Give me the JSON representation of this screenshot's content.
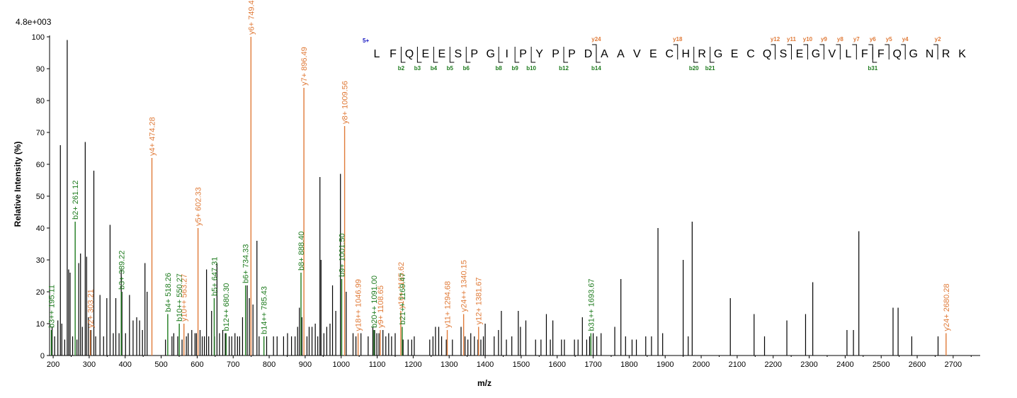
{
  "chart_data": {
    "type": "bar",
    "subtype": "mass-spectrum",
    "max_intensity_label": "4.8e+003",
    "xlabel": "m/z",
    "ylabel": "Relative   Intensity (%)",
    "xlim": [
      190,
      2775
    ],
    "ylim": [
      0,
      100
    ],
    "x_ticks": [
      200,
      300,
      400,
      500,
      600,
      700,
      800,
      900,
      1000,
      1100,
      1200,
      1300,
      1400,
      1500,
      1600,
      1700,
      1800,
      1900,
      2000,
      2100,
      2200,
      2300,
      2400,
      2500,
      2600,
      2700
    ],
    "y_ticks": [
      0,
      10,
      20,
      30,
      40,
      50,
      60,
      70,
      80,
      90,
      100
    ],
    "colors": {
      "black": "#000000",
      "y_ion": "#e07b39",
      "b_ion": "#1e7b1e",
      "charge": "#1010c0"
    },
    "peaks": [
      [
        197,
        9
      ],
      [
        204,
        6
      ],
      [
        213,
        11
      ],
      [
        220,
        66
      ],
      [
        224,
        10
      ],
      [
        232,
        5
      ],
      [
        239,
        99
      ],
      [
        243,
        27
      ],
      [
        247,
        26
      ],
      [
        254,
        6
      ],
      [
        266,
        5
      ],
      [
        271,
        29
      ],
      [
        276,
        32
      ],
      [
        281,
        9
      ],
      [
        289,
        67
      ],
      [
        293,
        31
      ],
      [
        298,
        12
      ],
      [
        305,
        8
      ],
      [
        313,
        58
      ],
      [
        318,
        6
      ],
      [
        330,
        19
      ],
      [
        340,
        6
      ],
      [
        349,
        18
      ],
      [
        358,
        41
      ],
      [
        367,
        7
      ],
      [
        374,
        18
      ],
      [
        383,
        7
      ],
      [
        389,
        27
      ],
      [
        391,
        20
      ],
      [
        401,
        7
      ],
      [
        412,
        19
      ],
      [
        422,
        11
      ],
      [
        432,
        12
      ],
      [
        440,
        11
      ],
      [
        448,
        8
      ],
      [
        455,
        29
      ],
      [
        461,
        20
      ],
      [
        512,
        5
      ],
      [
        530,
        6
      ],
      [
        535,
        7
      ],
      [
        546,
        6
      ],
      [
        558,
        5
      ],
      [
        570,
        6
      ],
      [
        575,
        7
      ],
      [
        585,
        8
      ],
      [
        594,
        7
      ],
      [
        598,
        7
      ],
      [
        608,
        8
      ],
      [
        614,
        6
      ],
      [
        620,
        6
      ],
      [
        626,
        27
      ],
      [
        632,
        6
      ],
      [
        640,
        14
      ],
      [
        648,
        6
      ],
      [
        655,
        29
      ],
      [
        662,
        7
      ],
      [
        671,
        8
      ],
      [
        678,
        7
      ],
      [
        689,
        6
      ],
      [
        696,
        6
      ],
      [
        705,
        7
      ],
      [
        712,
        6
      ],
      [
        718,
        6
      ],
      [
        726,
        12
      ],
      [
        739,
        22
      ],
      [
        745,
        18
      ],
      [
        755,
        16
      ],
      [
        766,
        36
      ],
      [
        772,
        6
      ],
      [
        793,
        6
      ],
      [
        812,
        6
      ],
      [
        822,
        6
      ],
      [
        840,
        6
      ],
      [
        851,
        7
      ],
      [
        862,
        6
      ],
      [
        872,
        6
      ],
      [
        879,
        9
      ],
      [
        884,
        15
      ],
      [
        891,
        12
      ],
      [
        905,
        6
      ],
      [
        911,
        9
      ],
      [
        919,
        9
      ],
      [
        928,
        10
      ],
      [
        935,
        6
      ],
      [
        941,
        56
      ],
      [
        944,
        30
      ],
      [
        952,
        7
      ],
      [
        960,
        9
      ],
      [
        969,
        10
      ],
      [
        976,
        22
      ],
      [
        985,
        14
      ],
      [
        998,
        57
      ],
      [
        1014,
        20
      ],
      [
        1033,
        7
      ],
      [
        1041,
        6
      ],
      [
        1055,
        7
      ],
      [
        1075,
        6
      ],
      [
        1088,
        9
      ],
      [
        1093,
        8
      ],
      [
        1099,
        7
      ],
      [
        1105,
        7
      ],
      [
        1116,
        8
      ],
      [
        1124,
        6
      ],
      [
        1132,
        7
      ],
      [
        1140,
        6
      ],
      [
        1150,
        7
      ],
      [
        1172,
        5
      ],
      [
        1186,
        5
      ],
      [
        1196,
        5
      ],
      [
        1203,
        6
      ],
      [
        1246,
        5
      ],
      [
        1255,
        6
      ],
      [
        1262,
        9
      ],
      [
        1271,
        9
      ],
      [
        1279,
        6
      ],
      [
        1292,
        5
      ],
      [
        1309,
        5
      ],
      [
        1333,
        9
      ],
      [
        1344,
        6
      ],
      [
        1352,
        5
      ],
      [
        1360,
        7
      ],
      [
        1370,
        6
      ],
      [
        1380,
        5
      ],
      [
        1388,
        5
      ],
      [
        1395,
        6
      ],
      [
        1400,
        10
      ],
      [
        1425,
        6
      ],
      [
        1437,
        8
      ],
      [
        1445,
        14
      ],
      [
        1459,
        5
      ],
      [
        1474,
        6
      ],
      [
        1492,
        14
      ],
      [
        1498,
        9
      ],
      [
        1513,
        11
      ],
      [
        1540,
        5
      ],
      [
        1555,
        5
      ],
      [
        1570,
        13
      ],
      [
        1581,
        5
      ],
      [
        1588,
        11
      ],
      [
        1612,
        5
      ],
      [
        1620,
        5
      ],
      [
        1648,
        5
      ],
      [
        1658,
        5
      ],
      [
        1670,
        12
      ],
      [
        1682,
        5
      ],
      [
        1690,
        6
      ],
      [
        1700,
        7
      ],
      [
        1710,
        6
      ],
      [
        1722,
        7
      ],
      [
        1760,
        9
      ],
      [
        1777,
        24
      ],
      [
        1790,
        6
      ],
      [
        1808,
        5
      ],
      [
        1820,
        5
      ],
      [
        1846,
        6
      ],
      [
        1862,
        6
      ],
      [
        1880,
        40
      ],
      [
        1893,
        7
      ],
      [
        1950,
        30
      ],
      [
        1964,
        6
      ],
      [
        1975,
        42
      ],
      [
        2081,
        18
      ],
      [
        2147,
        13
      ],
      [
        2176,
        6
      ],
      [
        2238,
        11
      ],
      [
        2290,
        13
      ],
      [
        2310,
        23
      ],
      [
        2405,
        8
      ],
      [
        2423,
        8
      ],
      [
        2438,
        39
      ],
      [
        2533,
        15
      ],
      [
        2547,
        15
      ],
      [
        2585,
        6
      ],
      [
        2658,
        6
      ]
    ],
    "y_ions": [
      {
        "mz": 303.21,
        "height": 8,
        "label": "y2+ 303.21"
      },
      {
        "mz": 474.28,
        "height": 62,
        "label": "y4+ 474.28"
      },
      {
        "mz": 563.27,
        "height": 10,
        "label": "y10++ 563.27"
      },
      {
        "mz": 602.33,
        "height": 40,
        "label": "y5+ 602.33"
      },
      {
        "mz": 749.4,
        "height": 100,
        "label": "y6+ 749.40"
      },
      {
        "mz": 896.49,
        "height": 84,
        "label": "y7+ 896.49"
      },
      {
        "mz": 1009.56,
        "height": 72,
        "label": "y8+ 1009.56"
      },
      {
        "mz": 1046.99,
        "height": 7,
        "label": "y18++ 1046.99"
      },
      {
        "mz": 1108.65,
        "height": 8,
        "label": "y9+ 1108.65"
      },
      {
        "mz": 1165.62,
        "height": 14,
        "label": "y10+ 1165.62"
      },
      {
        "mz": 1294.68,
        "height": 8,
        "label": "y11+ 1294.68"
      },
      {
        "mz": 1340.15,
        "height": 13,
        "label": "y24++ 1340.15"
      },
      {
        "mz": 1381.67,
        "height": 9,
        "label": "y12+ 1381.67"
      },
      {
        "mz": 2680.28,
        "height": 7,
        "label": "y24+ 2680.28"
      }
    ],
    "b_ions": [
      {
        "mz": 195.11,
        "height": 8,
        "label": "b3++ 195.11"
      },
      {
        "mz": 261.12,
        "height": 42,
        "label": "b2+ 261.12"
      },
      {
        "mz": 389.22,
        "height": 20,
        "label": "b3+ 389.22"
      },
      {
        "mz": 518.26,
        "height": 13,
        "label": "b4+ 518.26"
      },
      {
        "mz": 550.27,
        "height": 10,
        "label": "b10++ 550.27"
      },
      {
        "mz": 647.31,
        "height": 18,
        "label": "b5+ 647.31"
      },
      {
        "mz": 680.3,
        "height": 7,
        "label": "b12++ 680.30"
      },
      {
        "mz": 734.33,
        "height": 22,
        "label": "b6+ 734.33"
      },
      {
        "mz": 785.43,
        "height": 6,
        "label": "b14++ 785.43"
      },
      {
        "mz": 888.4,
        "height": 26,
        "label": "b8+ 888.40"
      },
      {
        "mz": 1001.5,
        "height": 24,
        "label": "b9+ 1001.50"
      },
      {
        "mz": 1091.0,
        "height": 8,
        "label": "b20++ 1091.00"
      },
      {
        "mz": 1169.47,
        "height": 9,
        "label": "b21++ 1169.47"
      },
      {
        "mz": 1693.67,
        "height": 7,
        "label": "b31++ 1693.67"
      }
    ],
    "peptide": {
      "charge_label": "5+",
      "sequence": [
        "L",
        "F",
        "Q",
        "E",
        "E",
        "S",
        "P",
        "G",
        "I",
        "P",
        "Y",
        "P",
        "P",
        "D",
        "A",
        "A",
        "V",
        "E",
        "C",
        "H",
        "R",
        "G",
        "E",
        "C",
        "Q",
        "S",
        "E",
        "G",
        "V",
        "L",
        "F",
        "F",
        "Q",
        "G",
        "N",
        "R",
        "K"
      ],
      "y_fragments": [
        {
          "after": 13,
          "label": "y24"
        },
        {
          "after": 18,
          "label": "y18"
        },
        {
          "after": 24,
          "label": "y12"
        },
        {
          "after": 25,
          "label": "y11"
        },
        {
          "after": 26,
          "label": "y10"
        },
        {
          "after": 27,
          "label": "y9"
        },
        {
          "after": 28,
          "label": "y8"
        },
        {
          "after": 29,
          "label": "y7"
        },
        {
          "after": 30,
          "label": "y6"
        },
        {
          "after": 31,
          "label": "y5"
        },
        {
          "after": 32,
          "label": "y4"
        },
        {
          "after": 34,
          "label": "y2"
        }
      ],
      "b_fragments": [
        {
          "after": 1,
          "label": "b2"
        },
        {
          "after": 2,
          "label": "b3"
        },
        {
          "after": 3,
          "label": "b4"
        },
        {
          "after": 4,
          "label": "b5"
        },
        {
          "after": 5,
          "label": "b6"
        },
        {
          "after": 7,
          "label": "b8"
        },
        {
          "after": 8,
          "label": "b9"
        },
        {
          "after": 9,
          "label": "b10"
        },
        {
          "after": 11,
          "label": "b12"
        },
        {
          "after": 13,
          "label": "b14"
        },
        {
          "after": 19,
          "label": "b20"
        },
        {
          "after": 20,
          "label": "b21"
        },
        {
          "after": 30,
          "label": "b31"
        }
      ]
    }
  }
}
